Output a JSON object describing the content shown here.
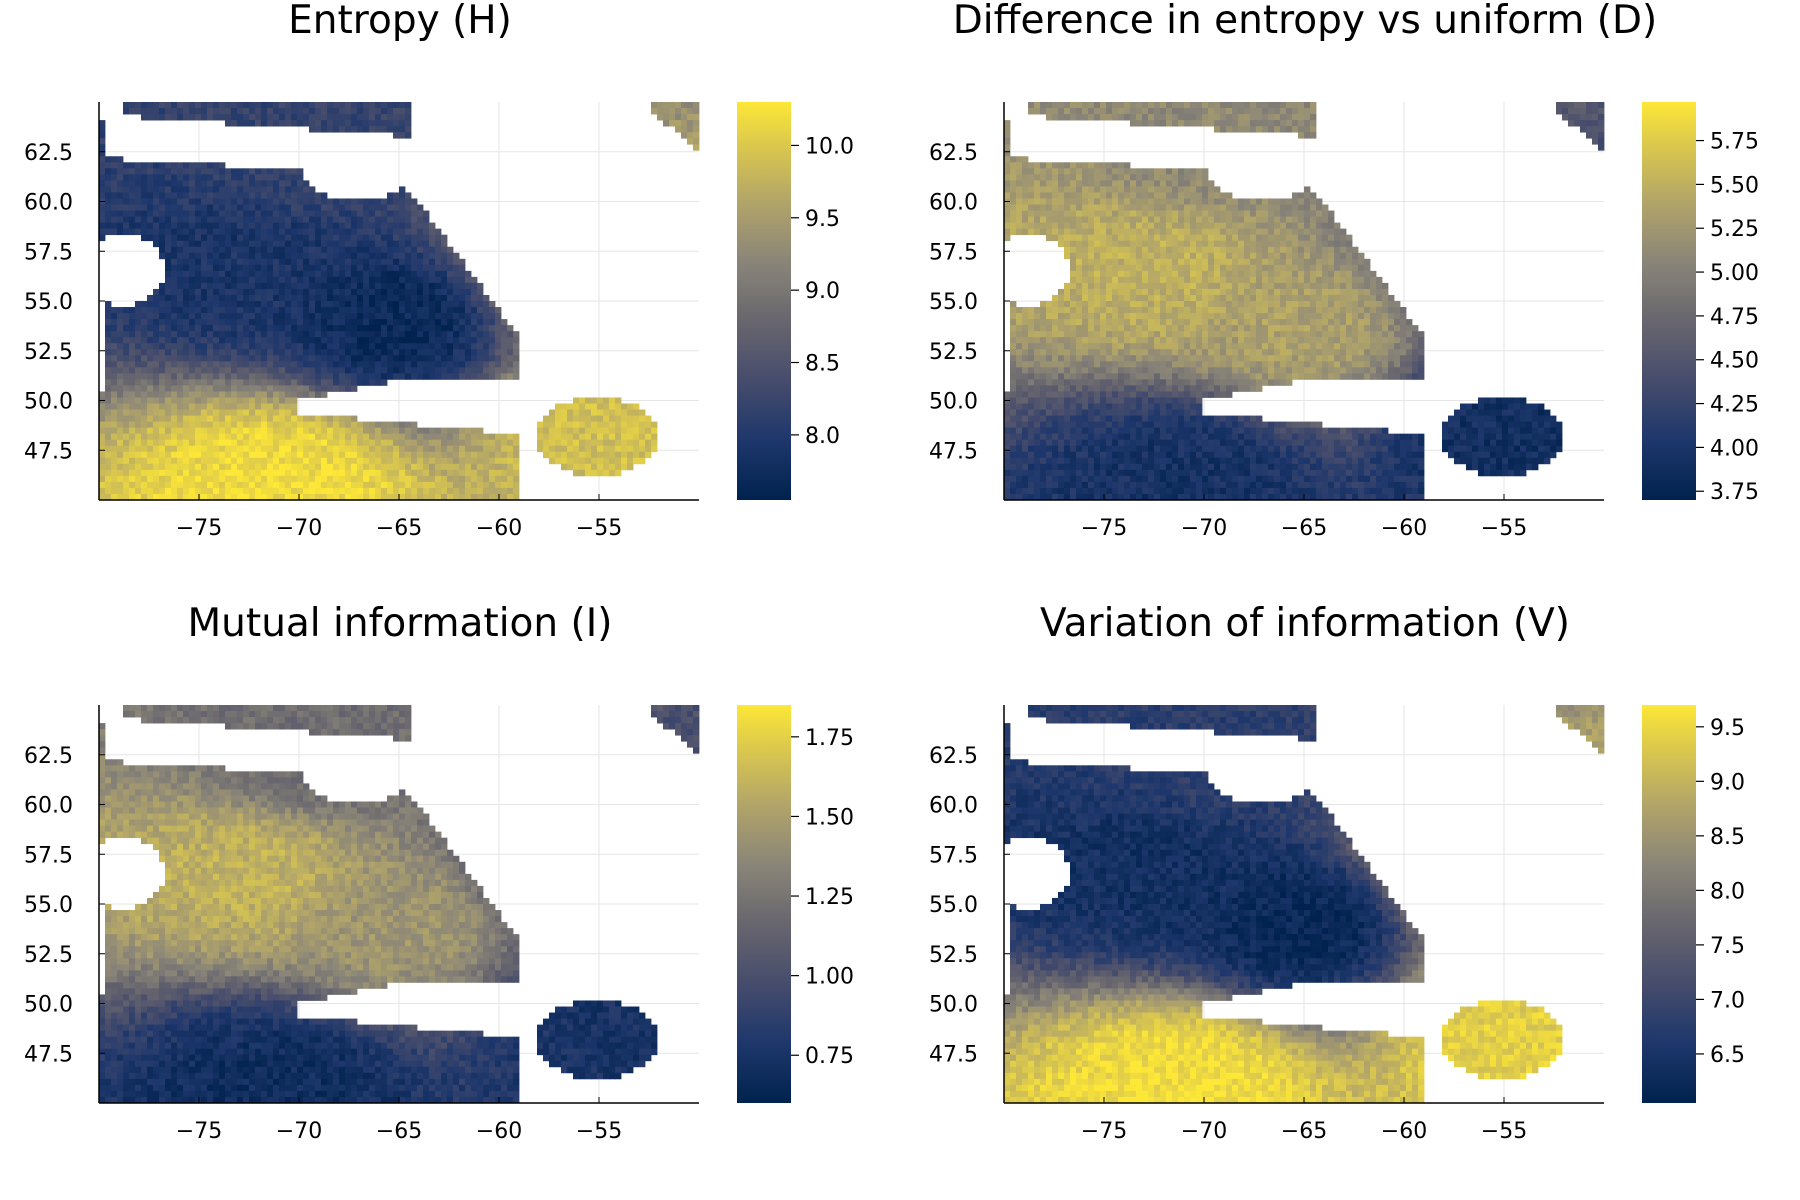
{
  "chart_data": [
    {
      "type": "heatmap",
      "title": "Entropy (H)",
      "xlabel": "",
      "ylabel": "",
      "xlim": [
        -80,
        -50
      ],
      "ylim": [
        45,
        65
      ],
      "x_ticks": [
        "−75",
        "−70",
        "−65",
        "−60",
        "−55"
      ],
      "x_tick_values": [
        -75,
        -70,
        -65,
        -60,
        -55
      ],
      "y_ticks": [
        "62.5",
        "60.0",
        "57.5",
        "55.0",
        "52.5",
        "50.0",
        "47.5"
      ],
      "y_tick_values": [
        62.5,
        60.0,
        57.5,
        55.0,
        52.5,
        50.0,
        47.5
      ],
      "colorbar": {
        "range": [
          7.55,
          10.3
        ],
        "ticks": [
          "10.0",
          "9.5",
          "9.0",
          "8.5",
          "8.0"
        ],
        "tick_values": [
          10.0,
          9.5,
          9.0,
          8.5,
          8.0
        ]
      },
      "colormap": "cividis",
      "grid": true,
      "field": {
        "west": 7.9,
        "center": 7.7,
        "north": 8.2,
        "northeast": 9.8,
        "east": 9.9,
        "south": 10.2
      }
    },
    {
      "type": "heatmap",
      "title": "Difference in entropy vs uniform (D)",
      "xlabel": "",
      "ylabel": "",
      "xlim": [
        -80,
        -50
      ],
      "ylim": [
        45,
        65
      ],
      "x_ticks": [
        "−75",
        "−70",
        "−65",
        "−60",
        "−55"
      ],
      "x_tick_values": [
        -75,
        -70,
        -65,
        -60,
        -55
      ],
      "y_ticks": [
        "62.5",
        "60.0",
        "57.5",
        "55.0",
        "52.5",
        "50.0",
        "47.5"
      ],
      "y_tick_values": [
        62.5,
        60.0,
        57.5,
        55.0,
        52.5,
        50.0,
        47.5
      ],
      "colorbar": {
        "range": [
          3.7,
          5.97
        ],
        "ticks": [
          "5.75",
          "5.50",
          "5.25",
          "5.00",
          "4.75",
          "4.50",
          "4.25",
          "4.00",
          "3.75"
        ],
        "tick_values": [
          5.75,
          5.5,
          5.25,
          5.0,
          4.75,
          4.5,
          4.25,
          4.0,
          3.75
        ]
      },
      "colormap": "cividis",
      "grid": true,
      "field": {
        "west": 5.5,
        "center": 5.35,
        "north": 5.1,
        "northeast": 4.3,
        "east": 3.9,
        "south": 3.95
      }
    },
    {
      "type": "heatmap",
      "title": "Mutual information (I)",
      "xlabel": "",
      "ylabel": "",
      "xlim": [
        -80,
        -50
      ],
      "ylim": [
        45,
        65
      ],
      "x_ticks": [
        "−75",
        "−70",
        "−65",
        "−60",
        "−55"
      ],
      "x_tick_values": [
        -75,
        -70,
        -65,
        -60,
        -55
      ],
      "y_ticks": [
        "62.5",
        "60.0",
        "57.5",
        "55.0",
        "52.5",
        "50.0",
        "47.5"
      ],
      "y_tick_values": [
        62.5,
        60.0,
        57.5,
        55.0,
        52.5,
        50.0,
        47.5
      ],
      "colorbar": {
        "range": [
          0.6,
          1.85
        ],
        "ticks": [
          "1.75",
          "1.50",
          "1.25",
          "1.00",
          "0.75"
        ],
        "tick_values": [
          1.75,
          1.5,
          1.25,
          1.0,
          0.75
        ]
      },
      "colormap": "cividis",
      "grid": true,
      "field": {
        "west": 1.6,
        "center": 1.45,
        "north": 1.2,
        "northeast": 0.9,
        "east": 0.75,
        "south": 0.7
      }
    },
    {
      "type": "heatmap",
      "title": "Variation of information (V)",
      "xlabel": "",
      "ylabel": "",
      "xlim": [
        -80,
        -50
      ],
      "ylim": [
        45,
        65
      ],
      "x_ticks": [
        "−75",
        "−70",
        "−65",
        "−60",
        "−55"
      ],
      "x_tick_values": [
        -75,
        -70,
        -65,
        -60,
        -55
      ],
      "y_ticks": [
        "62.5",
        "60.0",
        "57.5",
        "55.0",
        "52.5",
        "50.0",
        "47.5"
      ],
      "y_tick_values": [
        62.5,
        60.0,
        57.5,
        55.0,
        52.5,
        50.0,
        47.5
      ],
      "colorbar": {
        "range": [
          6.05,
          9.7
        ],
        "ticks": [
          "9.5",
          "9.0",
          "8.5",
          "8.0",
          "7.5",
          "7.0",
          "6.5"
        ],
        "tick_values": [
          9.5,
          9.0,
          8.5,
          8.0,
          7.5,
          7.0,
          6.5
        ]
      },
      "colormap": "cividis",
      "grid": true,
      "field": {
        "west": 6.4,
        "center": 6.2,
        "north": 6.8,
        "northeast": 9.2,
        "east": 9.4,
        "south": 9.6
      }
    }
  ]
}
